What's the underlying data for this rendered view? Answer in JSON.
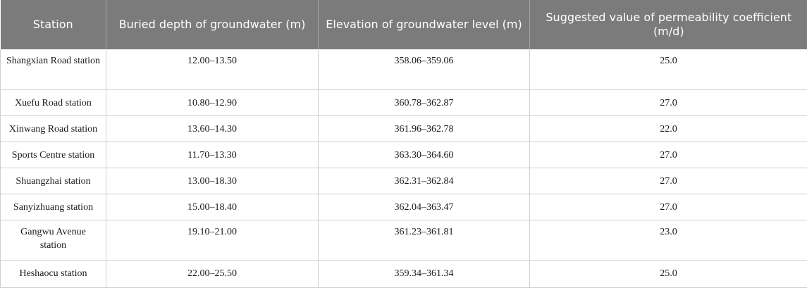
{
  "table": {
    "headers": [
      "Station",
      "Buried depth of groundwater (m)",
      "Elevation of groundwater level (m)",
      "Suggested value of permeability coefficient (m/d)"
    ],
    "rows": [
      [
        "Shangxian Road station",
        "12.00–13.50",
        "358.06–359.06",
        "25.0"
      ],
      [
        "Xuefu Road station",
        "10.80–12.90",
        "360.78–362.87",
        "27.0"
      ],
      [
        "Xinwang Road station",
        "13.60–14.30",
        "361.96–362.78",
        "22.0"
      ],
      [
        "Sports Centre station",
        "11.70–13.30",
        "363.30–364.60",
        "27.0"
      ],
      [
        "Shuangzhai station",
        "13.00–18.30",
        "362.31–362.84",
        "27.0"
      ],
      [
        "Sanyizhuang station",
        "15.00–18.40",
        "362.04–363.47",
        "27.0"
      ],
      [
        "Gangwu Avenue station",
        "19.10–21.00",
        "361.23–361.81",
        "23.0"
      ],
      [
        "Heshaocu station",
        "22.00–25.50",
        "359.34–361.34",
        "25.0"
      ]
    ]
  }
}
